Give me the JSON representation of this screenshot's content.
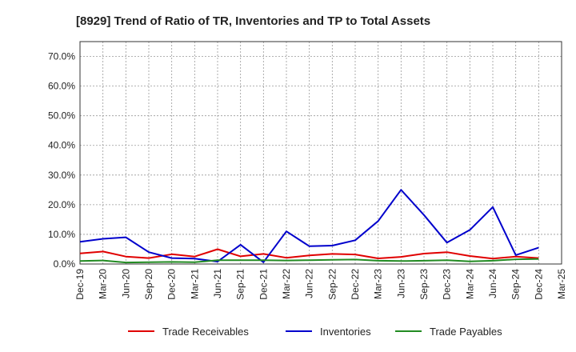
{
  "chart_data": {
    "type": "line",
    "title": "[8929]  Trend of Ratio of TR, Inventories and TP to Total Assets",
    "xlabel": "",
    "ylabel": "",
    "ylim": [
      0,
      75
    ],
    "yticks": [
      0,
      10,
      20,
      30,
      40,
      50,
      60,
      70
    ],
    "ytick_labels": [
      "0.0%",
      "10.0%",
      "20.0%",
      "30.0%",
      "40.0%",
      "50.0%",
      "60.0%",
      "70.0%"
    ],
    "x": [
      "Dec-19",
      "Mar-20",
      "Jun-20",
      "Sep-20",
      "Dec-20",
      "Mar-21",
      "Jun-21",
      "Sep-21",
      "Dec-21",
      "Mar-22",
      "Jun-22",
      "Sep-22",
      "Dec-22",
      "Mar-23",
      "Jun-23",
      "Sep-23",
      "Dec-23",
      "Mar-24",
      "Jun-24",
      "Sep-24",
      "Dec-24",
      "Mar-25"
    ],
    "grid": true,
    "legend_position": "bottom",
    "series": [
      {
        "name": "Trade Receivables",
        "color": "#e00000",
        "values": [
          3.6,
          4.2,
          2.5,
          2.0,
          3.3,
          2.5,
          5.0,
          2.6,
          3.4,
          2.1,
          2.9,
          3.4,
          3.2,
          1.9,
          2.4,
          3.5,
          4.0,
          2.7,
          1.8,
          2.5,
          2.0,
          null
        ]
      },
      {
        "name": "Inventories",
        "color": "#0000cc",
        "values": [
          7.5,
          8.5,
          9.0,
          4.0,
          2.0,
          1.8,
          0.8,
          6.5,
          0.6,
          11.0,
          6.0,
          6.2,
          8.0,
          14.5,
          25.0,
          16.5,
          7.2,
          11.5,
          19.2,
          3.0,
          5.5,
          null
        ]
      },
      {
        "name": "Trade Payables",
        "color": "#228b22",
        "values": [
          1.0,
          1.2,
          0.5,
          0.6,
          0.7,
          0.6,
          1.3,
          1.3,
          1.3,
          1.2,
          1.3,
          1.4,
          1.5,
          1.1,
          1.0,
          1.1,
          1.3,
          0.9,
          1.1,
          1.6,
          1.7,
          null
        ]
      }
    ]
  }
}
